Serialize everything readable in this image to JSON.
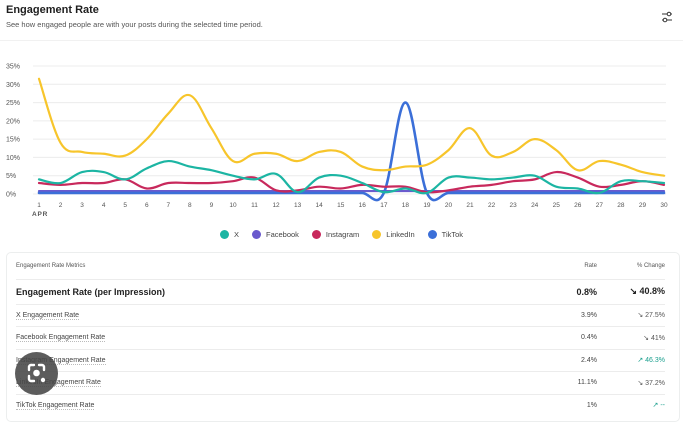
{
  "header": {
    "title": "Engagement Rate",
    "subtitle": "See how engaged people are with your posts during the selected time period."
  },
  "icons": {
    "settings": "sliders-icon",
    "lens": "lens-search-icon"
  },
  "chart_data": {
    "type": "line",
    "title": "Engagement Rate",
    "xlabel": "APR",
    "ylabel": "",
    "ylim": [
      0,
      35
    ],
    "yticks": [
      "0%",
      "5%",
      "10%",
      "15%",
      "20%",
      "25%",
      "30%",
      "35%"
    ],
    "ytick_values": [
      0,
      5,
      10,
      15,
      20,
      25,
      30,
      35
    ],
    "x": [
      1,
      2,
      3,
      4,
      5,
      6,
      7,
      8,
      9,
      10,
      11,
      12,
      13,
      14,
      15,
      16,
      17,
      18,
      19,
      20,
      21,
      22,
      23,
      24,
      25,
      26,
      27,
      28,
      29,
      30
    ],
    "x_month_label": "APR",
    "grid": true,
    "legend_position": "bottom-center",
    "series": [
      {
        "name": "X",
        "color": "#1cb5a3",
        "values": [
          4,
          3,
          6,
          6,
          4,
          7,
          9,
          7.5,
          6.5,
          5,
          4,
          5.5,
          0.5,
          4.5,
          5,
          3,
          0.5,
          1.5,
          0.3,
          4.5,
          4.5,
          4,
          4.5,
          5,
          2,
          1.5,
          0.3,
          3.5,
          3.5,
          3
        ]
      },
      {
        "name": "Facebook",
        "color": "#6a5acd",
        "values": [
          0.8,
          0.8,
          0.8,
          0.8,
          0.8,
          0.8,
          0.8,
          0.8,
          0.8,
          0.8,
          0.8,
          0.8,
          0.8,
          0.8,
          0.8,
          0.8,
          0.8,
          0.8,
          0.8,
          0.8,
          0.8,
          0.8,
          0.8,
          0.8,
          0.8,
          0.8,
          0.8,
          0.8,
          0.8,
          0.8
        ]
      },
      {
        "name": "Instagram",
        "color": "#c8295c",
        "values": [
          3,
          2.5,
          3,
          3,
          4,
          1.5,
          3,
          3,
          3,
          3.5,
          4.5,
          1,
          1,
          2,
          1.5,
          2.5,
          2,
          2,
          0.5,
          1,
          2,
          2.5,
          3.5,
          4,
          6,
          4.5,
          2,
          2.5,
          3.5,
          2.5
        ]
      },
      {
        "name": "LinkedIn",
        "color": "#f7c52b",
        "values": [
          31.5,
          14,
          11.5,
          11,
          10.5,
          15,
          22,
          27,
          18,
          9,
          11,
          11,
          9,
          11.5,
          11.5,
          7.5,
          6.5,
          7.5,
          8,
          12,
          18,
          10.5,
          11.5,
          15,
          12,
          6.5,
          9,
          8,
          6,
          5
        ]
      },
      {
        "name": "TikTok",
        "color": "#3b6fd8",
        "values": [
          0.3,
          0.3,
          0.3,
          0.3,
          0.3,
          0.3,
          0.3,
          0.3,
          0.3,
          0.3,
          0.3,
          0.3,
          0.3,
          0.3,
          0.3,
          0.3,
          0.3,
          25,
          0.3,
          0.3,
          0.3,
          0.3,
          0.3,
          0.3,
          0.3,
          0.3,
          0.3,
          0.3,
          0.3,
          0.3
        ]
      }
    ]
  },
  "legend": [
    {
      "label": "X",
      "color": "#1cb5a3"
    },
    {
      "label": "Facebook",
      "color": "#6a5acd"
    },
    {
      "label": "Instagram",
      "color": "#c8295c"
    },
    {
      "label": "LinkedIn",
      "color": "#f7c52b"
    },
    {
      "label": "TikTok",
      "color": "#3b6fd8"
    }
  ],
  "table": {
    "headers": {
      "metric": "Engagement Rate Metrics",
      "rate": "Rate",
      "change": "% Change"
    },
    "main": {
      "label": "Engagement Rate (per Impression)",
      "rate": "0.8%",
      "change": "↘ 40.8%"
    },
    "rows": [
      {
        "label": "X Engagement Rate",
        "rate": "3.9%",
        "change": "↘ 27.5%",
        "direction": "down"
      },
      {
        "label": "Facebook Engagement Rate",
        "rate": "0.4%",
        "change": "↘ 41%",
        "direction": "down"
      },
      {
        "label": "Instagram Engagement Rate",
        "rate": "2.4%",
        "change": "↗ 46.3%",
        "direction": "up"
      },
      {
        "label": "LinkedIn Engagement Rate",
        "rate": "11.1%",
        "change": "↘ 37.2%",
        "direction": "down"
      },
      {
        "label": "TikTok Engagement Rate",
        "rate": "1%",
        "change": "↗ --",
        "direction": "up"
      }
    ]
  }
}
